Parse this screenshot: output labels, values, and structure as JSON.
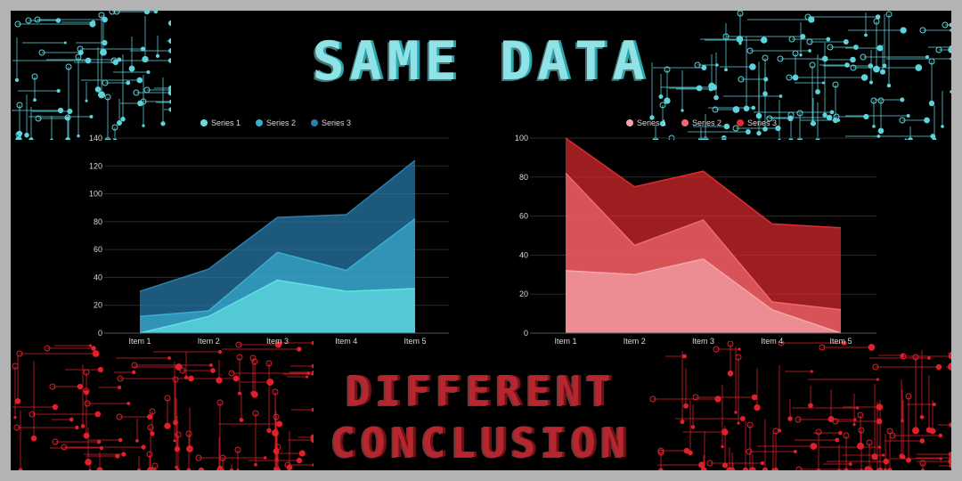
{
  "header": {
    "title": "SAME DATA"
  },
  "footer": {
    "line1": "DIFFERENT",
    "line2": "CONCLUSION"
  },
  "colors": {
    "background": "#000000",
    "frame": "#b3b3b3",
    "title": "#8fe3e6",
    "subtitle": "#b5262e",
    "circuit_top": "#5fd3dc",
    "circuit_bottom": "#e0202a"
  },
  "chart_data": [
    {
      "type": "area",
      "stacked": true,
      "categories": [
        "Item 1",
        "Item 2",
        "Item 3",
        "Item 4",
        "Item 5"
      ],
      "series": [
        {
          "name": "Series 1",
          "values": [
            0,
            12,
            38,
            30,
            32
          ],
          "color": "#63e0e3"
        },
        {
          "name": "Series 2",
          "values": [
            12,
            4,
            20,
            15,
            50
          ],
          "color": "#3aaed0"
        },
        {
          "name": "Series 3",
          "values": [
            18,
            30,
            25,
            40,
            42
          ],
          "color": "#2a7fb0"
        }
      ],
      "ylim": [
        0,
        140
      ],
      "yticks": [
        0,
        20,
        40,
        60,
        80,
        100,
        120,
        140
      ],
      "legend": "top",
      "grid": true
    },
    {
      "type": "area",
      "stacked": true,
      "categories": [
        "Item 1",
        "Item 2",
        "Item 3",
        "Item 4",
        "Item 5"
      ],
      "series": [
        {
          "name": "Series 1",
          "values": [
            32,
            30,
            38,
            12,
            0
          ],
          "color": "#f4a6ab"
        },
        {
          "name": "Series 2",
          "values": [
            50,
            15,
            20,
            4,
            12
          ],
          "color": "#ef6a6f"
        },
        {
          "name": "Series 3",
          "values": [
            18,
            30,
            25,
            40,
            42
          ],
          "color": "#e02b2f"
        }
      ],
      "ylim": [
        0,
        100
      ],
      "yticks": [
        0,
        20,
        40,
        60,
        80,
        100
      ],
      "legend": "top",
      "grid": true
    }
  ]
}
